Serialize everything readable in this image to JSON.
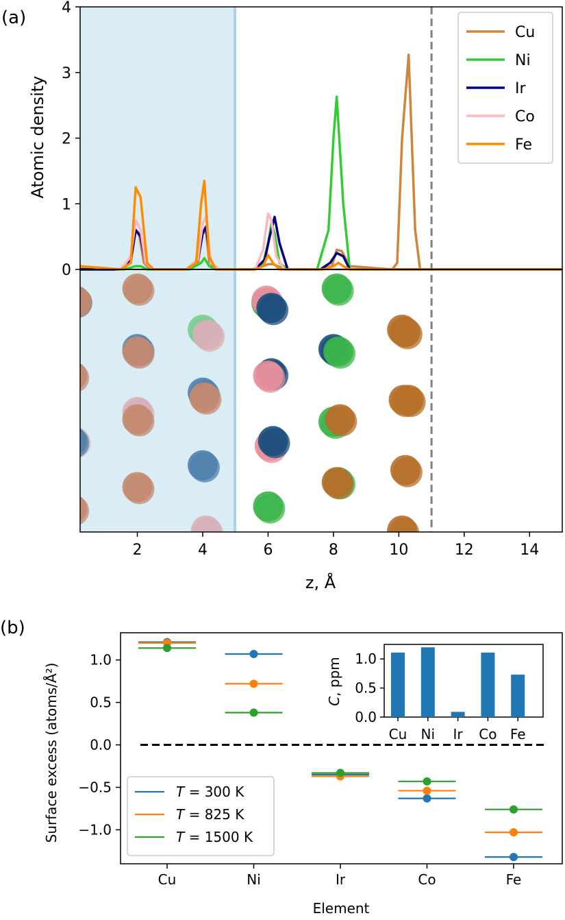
{
  "figure": {
    "panel_a_label": "(a)",
    "panel_b_label": "(b)"
  },
  "chart_data": [
    {
      "panel": "a",
      "type": "line",
      "ylabel": "Atomic density",
      "xlabel": "z, Å",
      "xlim": [
        0.25,
        15
      ],
      "ylim": [
        0,
        4
      ],
      "xticks": [
        2,
        4,
        6,
        8,
        10,
        12,
        14
      ],
      "yticks": [
        0,
        1,
        2,
        3,
        4
      ],
      "grid": false,
      "legend_position": "top-right",
      "shaded_region_x": [
        0.25,
        5
      ],
      "vertical_dashed_line_x": 11,
      "series": [
        {
          "name": "Cu",
          "color": "#cd853f",
          "x": [
            0.25,
            1.5,
            1.8,
            1.95,
            2.05,
            2.2,
            2.4,
            3.5,
            3.85,
            4.0,
            4.1,
            4.2,
            4.4,
            5.5,
            5.85,
            6.0,
            6.15,
            6.3,
            6.55,
            7.6,
            7.95,
            8.1,
            8.25,
            8.5,
            9.8,
            9.95,
            10.1,
            10.3,
            10.5,
            10.65,
            15
          ],
          "y": [
            0.03,
            0.0,
            0.1,
            0.6,
            0.55,
            0.1,
            0.0,
            0.0,
            0.08,
            0.55,
            0.58,
            0.12,
            0.0,
            0.0,
            0.05,
            0.08,
            0.08,
            0.05,
            0.0,
            0.0,
            0.05,
            0.3,
            0.28,
            0.05,
            0.0,
            0.1,
            2.0,
            3.27,
            0.6,
            0.0,
            0.0
          ]
        },
        {
          "name": "Ni",
          "color": "#32cd32",
          "x": [
            0.25,
            1.6,
            1.95,
            2.1,
            2.3,
            3.6,
            3.95,
            4.05,
            4.2,
            4.4,
            5.6,
            5.85,
            6.0,
            6.1,
            6.2,
            6.35,
            6.6,
            7.5,
            7.85,
            8.0,
            8.1,
            8.3,
            8.5,
            15
          ],
          "y": [
            0.0,
            0.0,
            0.05,
            0.05,
            0.0,
            0.0,
            0.1,
            0.17,
            0.05,
            0.0,
            0.0,
            0.1,
            0.4,
            0.7,
            0.55,
            0.1,
            0.0,
            0.0,
            0.6,
            2.0,
            2.63,
            1.0,
            0.0,
            0.0
          ]
        },
        {
          "name": "Ir",
          "color": "#000080",
          "x": [
            0.25,
            1.5,
            1.8,
            1.95,
            2.1,
            2.25,
            2.5,
            3.5,
            3.85,
            4.0,
            4.1,
            4.25,
            4.5,
            5.6,
            5.9,
            6.05,
            6.2,
            6.35,
            6.6,
            7.6,
            7.9,
            8.1,
            8.3,
            8.5,
            15
          ],
          "y": [
            0.0,
            0.0,
            0.15,
            0.6,
            0.5,
            0.1,
            0.0,
            0.0,
            0.15,
            0.55,
            0.65,
            0.1,
            0.0,
            0.0,
            0.15,
            0.5,
            0.8,
            0.4,
            0.0,
            0.0,
            0.1,
            0.25,
            0.2,
            0.0,
            0.0
          ]
        },
        {
          "name": "Co",
          "color": "#ffb6c1",
          "x": [
            0.25,
            1.5,
            1.8,
            1.95,
            2.1,
            2.25,
            2.5,
            3.5,
            3.85,
            4.0,
            4.1,
            4.25,
            4.5,
            5.6,
            5.85,
            6.0,
            6.1,
            6.25,
            6.5,
            15
          ],
          "y": [
            0.05,
            0.0,
            0.2,
            0.75,
            0.6,
            0.1,
            0.0,
            0.0,
            0.15,
            0.7,
            0.8,
            0.1,
            0.0,
            0.0,
            0.3,
            0.85,
            0.75,
            0.2,
            0.0,
            0.0
          ]
        },
        {
          "name": "Fe",
          "color": "#ff8c00",
          "x": [
            0.25,
            1.5,
            1.8,
            1.95,
            2.1,
            2.3,
            2.5,
            3.5,
            3.8,
            3.95,
            4.05,
            4.2,
            4.4,
            5.6,
            5.85,
            6.0,
            6.15,
            6.35,
            7.7,
            8.0,
            8.15,
            8.3,
            8.5,
            15
          ],
          "y": [
            0.05,
            0.0,
            0.1,
            1.25,
            1.1,
            0.1,
            0.0,
            0.0,
            0.1,
            1.0,
            1.35,
            0.2,
            0.0,
            0.0,
            0.05,
            0.22,
            0.1,
            0.0,
            0.0,
            0.05,
            0.1,
            0.05,
            0.0,
            0.0
          ]
        }
      ],
      "atoms": [
        {
          "element": "Ir",
          "z": 0.1,
          "row": 0.05,
          "color": "#3a78a8"
        },
        {
          "element": "Cu",
          "z": 0.1,
          "row": 0.05,
          "color": "#c38a70"
        },
        {
          "element": "Cu",
          "z": 2.0,
          "row": 0.0,
          "color": "#c38a70"
        },
        {
          "element": "Cu",
          "z": 0.0,
          "row": 0.36,
          "color": "#c38a70"
        },
        {
          "element": "Ir",
          "z": 2.0,
          "row": 0.25,
          "color": "#4f82ad"
        },
        {
          "element": "Cu",
          "z": 2.0,
          "row": 0.26,
          "color": "#c38a70"
        },
        {
          "element": "Ni",
          "z": 4.0,
          "row": 0.17,
          "color": "#7dcc92"
        },
        {
          "element": "Co",
          "z": 4.15,
          "row": 0.19,
          "color": "#d7b0b8"
        },
        {
          "element": "Ir",
          "z": 4.0,
          "row": 0.43,
          "color": "#4f82ad"
        },
        {
          "element": "Cu",
          "z": 4.05,
          "row": 0.45,
          "color": "#c38a70"
        },
        {
          "element": "Co",
          "z": 2.0,
          "row": 0.51,
          "color": "#d7b0b8"
        },
        {
          "element": "Cu",
          "z": 2.0,
          "row": 0.54,
          "color": "#c38a70"
        },
        {
          "element": "Co",
          "z": 0.05,
          "row": 0.63,
          "color": "#d7b0b8"
        },
        {
          "element": "Ir",
          "z": 0.0,
          "row": 0.63,
          "color": "#4f82ad"
        },
        {
          "element": "Ir",
          "z": 4.0,
          "row": 0.73,
          "color": "#4f82ad"
        },
        {
          "element": "Cu",
          "z": 2.0,
          "row": 0.82,
          "color": "#c38a70"
        },
        {
          "element": "Cu",
          "z": 0.0,
          "row": 0.91,
          "color": "#c38a70"
        },
        {
          "element": "Co",
          "z": 4.1,
          "row": 1.0,
          "color": "#d7b0b8"
        },
        {
          "element": "Ni",
          "z": 5.95,
          "row": 0.06,
          "color": "#3cb54a"
        },
        {
          "element": "Co",
          "z": 5.95,
          "row": 0.05,
          "color": "#e88f9c"
        },
        {
          "element": "Ir",
          "z": 6.1,
          "row": 0.08,
          "color": "#1b4f7c"
        },
        {
          "element": "Ir",
          "z": 6.1,
          "row": 0.35,
          "color": "#1b4f7c"
        },
        {
          "element": "Co",
          "z": 6.0,
          "row": 0.36,
          "color": "#e88f9c"
        },
        {
          "element": "Co",
          "z": 6.05,
          "row": 0.65,
          "color": "#e88f9c"
        },
        {
          "element": "Ir",
          "z": 6.15,
          "row": 0.63,
          "color": "#1b4f7c"
        },
        {
          "element": "Ni",
          "z": 6.0,
          "row": 0.9,
          "color": "#3cb54a"
        },
        {
          "element": "Ni",
          "z": 8.1,
          "row": 0.0,
          "color": "#3cb54a"
        },
        {
          "element": "Ir",
          "z": 8.0,
          "row": 0.25,
          "color": "#1b4f7c"
        },
        {
          "element": "Ni",
          "z": 8.15,
          "row": 0.26,
          "color": "#3cb54a"
        },
        {
          "element": "Ni",
          "z": 8.0,
          "row": 0.55,
          "color": "#3cb54a"
        },
        {
          "element": "Cu",
          "z": 8.2,
          "row": 0.54,
          "color": "#b6702a"
        },
        {
          "element": "Ni",
          "z": 8.15,
          "row": 0.8,
          "color": "#3cb54a"
        },
        {
          "element": "Cu",
          "z": 8.1,
          "row": 0.8,
          "color": "#b6702a"
        },
        {
          "element": "Cu",
          "z": 10.1,
          "row": 0.17,
          "color": "#b6702a"
        },
        {
          "element": "Cu",
          "z": 10.2,
          "row": 0.18,
          "color": "#b6702a"
        },
        {
          "element": "Cu",
          "z": 10.15,
          "row": 0.46,
          "color": "#b6702a"
        },
        {
          "element": "Cu",
          "z": 10.3,
          "row": 0.46,
          "color": "#b6702a"
        },
        {
          "element": "Cu",
          "z": 10.2,
          "row": 0.75,
          "color": "#b6702a"
        },
        {
          "element": "Cu",
          "z": 10.1,
          "row": 1.0,
          "color": "#b6702a"
        }
      ]
    },
    {
      "panel": "b",
      "type": "scatter",
      "ylabel": "Surface excess (atoms/Å²)",
      "xlabel": "Element",
      "categories": [
        "Cu",
        "Ni",
        "Ir",
        "Co",
        "Fe"
      ],
      "ylim": [
        -1.4,
        1.32
      ],
      "yticks": [
        1.0,
        0.5,
        0.0,
        -0.5,
        -1.0
      ],
      "ytick_labels": [
        "1.0",
        "0.5",
        "0.0",
        "−0.5",
        "−1.0"
      ],
      "zero_dashed_line": true,
      "legend_position": "bottom-left",
      "series": [
        {
          "name": "T = 300 K",
          "name_var": "T",
          "name_rest": " = 300 K",
          "color": "#1f77b4",
          "values": [
            1.21,
            1.07,
            -0.35,
            -0.63,
            -1.32
          ]
        },
        {
          "name": "T = 825 K",
          "name_var": "T",
          "name_rest": " = 825 K",
          "color": "#ff7f0e",
          "values": [
            1.2,
            0.72,
            -0.37,
            -0.54,
            -1.03
          ]
        },
        {
          "name": "T = 1500 K",
          "name_var": "T",
          "name_rest": " = 1500 K",
          "color": "#2ca02c",
          "values": [
            1.14,
            0.38,
            -0.33,
            -0.43,
            -0.76
          ]
        }
      ],
      "inset": {
        "type": "bar",
        "ylabel_var": "C",
        "ylabel_rest": ", ppm",
        "categories": [
          "Cu",
          "Ni",
          "Ir",
          "Co",
          "Fe"
        ],
        "values": [
          1.11,
          1.2,
          0.09,
          1.11,
          0.73
        ],
        "ylim": [
          0,
          1.25
        ],
        "yticks": [
          0.0,
          0.5,
          1.0
        ],
        "ytick_labels": [
          "0.0",
          "0.5",
          "1.0"
        ],
        "color": "#1f77b4"
      }
    }
  ]
}
